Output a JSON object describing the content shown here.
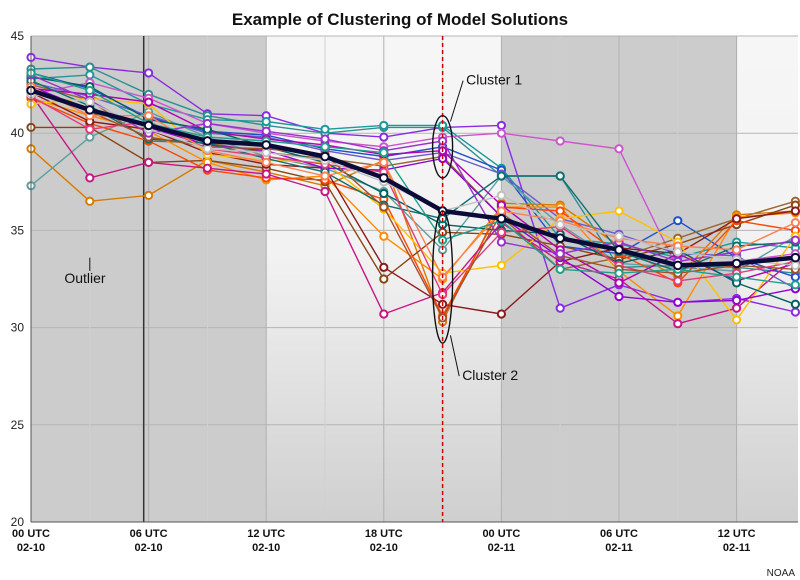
{
  "chart_data": {
    "type": "line",
    "title": "Example of Clustering of Model Solutions",
    "credit": "NOAA",
    "ylim": [
      20,
      45
    ],
    "yticks": [
      20,
      25,
      30,
      35,
      40,
      45
    ],
    "xlim": [
      0,
      33
    ],
    "xticks": [
      {
        "x": 0,
        "line1": "00 UTC",
        "line2": "02-10"
      },
      {
        "x": 6,
        "line1": "06 UTC",
        "line2": "02-10"
      },
      {
        "x": 12,
        "line1": "12 UTC",
        "line2": "02-10"
      },
      {
        "x": 18,
        "line1": "18 UTC",
        "line2": "02-10"
      },
      {
        "x": 24,
        "line1": "00 UTC",
        "line2": "02-11"
      },
      {
        "x": 30,
        "line1": "06 UTC",
        "line2": "02-11"
      },
      {
        "x": 36,
        "line1": "12 UTC",
        "line2": "02-11"
      }
    ],
    "night_bands": [
      [
        0,
        12
      ],
      [
        24,
        36
      ]
    ],
    "marked_time": 21,
    "black_vline": 5.75,
    "x": [
      0,
      3,
      6,
      9,
      12,
      15,
      18,
      21,
      24,
      27,
      30,
      33,
      36,
      39
    ],
    "mean": {
      "color": "#0b0b3a",
      "values": [
        42.2,
        41.2,
        40.4,
        39.6,
        39.4,
        38.8,
        37.7,
        36.0,
        35.6,
        34.6,
        34.0,
        33.2,
        33.3,
        33.6
      ]
    },
    "series": [
      {
        "color": "#8a2be2",
        "values": [
          43.9,
          43.4,
          43.1,
          41.0,
          40.9,
          40.0,
          39.8,
          40.3,
          40.4,
          31.0,
          32.2,
          31.3,
          31.5,
          30.8
        ]
      },
      {
        "color": "#2f8f8f",
        "values": [
          43.3,
          43.4,
          42.0,
          40.9,
          40.4,
          40.0,
          40.3,
          40.3,
          37.8,
          37.8,
          33.1,
          33.2,
          33.1,
          32.8
        ]
      },
      {
        "color": "#1a9a9a",
        "values": [
          42.8,
          43.0,
          41.5,
          40.7,
          40.6,
          40.2,
          40.4,
          40.4,
          38.2,
          34.6,
          34.3,
          33.6,
          34.4,
          34.1
        ]
      },
      {
        "color": "#cc55cc",
        "values": [
          42.0,
          42.6,
          41.8,
          40.5,
          40.0,
          39.6,
          39.3,
          39.8,
          40.0,
          39.6,
          39.2,
          33.0,
          33.4,
          33.8
        ]
      },
      {
        "color": "#1e50c8",
        "values": [
          43.1,
          42.3,
          40.8,
          40.1,
          39.9,
          39.2,
          38.8,
          39.3,
          38.1,
          34.2,
          33.8,
          35.5,
          33.6,
          32.6
        ]
      },
      {
        "color": "#6a5acd",
        "values": [
          42.6,
          41.9,
          40.9,
          40.0,
          39.8,
          39.1,
          38.6,
          39.0,
          37.9,
          35.6,
          34.8,
          33.8,
          33.7,
          32.0
        ]
      },
      {
        "color": "#996633",
        "values": [
          42.5,
          41.7,
          39.6,
          39.5,
          39.0,
          38.7,
          38.3,
          38.8,
          35.7,
          33.0,
          33.6,
          34.6,
          35.6,
          36.5
        ]
      },
      {
        "color": "#d97a00",
        "values": [
          39.2,
          36.5,
          36.8,
          38.6,
          38.0,
          37.3,
          38.6,
          30.3,
          36.4,
          36.3,
          34.2,
          32.6,
          35.8,
          36.0
        ]
      },
      {
        "color": "#5f9ea0",
        "values": [
          37.3,
          39.8,
          41.1,
          39.8,
          38.8,
          38.2,
          37.0,
          34.0,
          37.8,
          35.3,
          33.3,
          33.1,
          32.9,
          34.7
        ]
      },
      {
        "color": "#8b4513",
        "values": [
          40.3,
          40.3,
          38.5,
          38.6,
          38.2,
          37.5,
          32.5,
          34.9,
          34.8,
          34.2,
          33.5,
          34.3,
          35.3,
          36.3
        ]
      },
      {
        "color": "#ff8c00",
        "values": [
          41.8,
          40.9,
          40.1,
          38.5,
          37.6,
          37.8,
          34.7,
          32.5,
          36.2,
          36.2,
          32.9,
          30.6,
          35.7,
          35.9
        ]
      },
      {
        "color": "#ff4500",
        "values": [
          41.8,
          40.5,
          39.6,
          38.1,
          37.7,
          37.6,
          36.6,
          30.6,
          36.2,
          36.0,
          33.8,
          32.3,
          35.5,
          35.0
        ]
      },
      {
        "color": "#8b1a1a",
        "values": [
          42.1,
          40.6,
          40.2,
          39.0,
          38.4,
          38.2,
          33.1,
          31.2,
          30.7,
          33.4,
          34.1,
          33.8,
          35.6,
          36.0
        ]
      },
      {
        "color": "#c71585",
        "values": [
          42.0,
          37.7,
          38.5,
          38.2,
          37.9,
          37.0,
          30.7,
          31.8,
          35.4,
          33.4,
          32.5,
          30.2,
          31.0,
          33.6
        ]
      },
      {
        "color": "#ffc000",
        "values": [
          41.5,
          41.8,
          41.5,
          38.9,
          38.6,
          38.5,
          36.1,
          32.8,
          33.2,
          35.6,
          36.0,
          34.4,
          30.4,
          34.7
        ]
      },
      {
        "color": "#9400d3",
        "values": [
          42.4,
          41.2,
          40.3,
          39.4,
          39.1,
          38.2,
          38.1,
          38.7,
          35.7,
          33.6,
          31.6,
          31.3,
          31.4,
          32.0
        ]
      },
      {
        "color": "#b000b0",
        "values": [
          42.3,
          42.0,
          41.6,
          40.1,
          39.7,
          39.4,
          38.9,
          39.1,
          36.3,
          34.0,
          32.3,
          33.8,
          32.4,
          33.3
        ]
      },
      {
        "color": "#006060",
        "values": [
          42.9,
          42.4,
          40.7,
          40.2,
          39.3,
          38.5,
          36.9,
          35.3,
          35.0,
          34.8,
          33.3,
          34.0,
          32.3,
          31.2
        ]
      },
      {
        "color": "#0f6e6e",
        "values": [
          42.7,
          41.4,
          39.7,
          39.5,
          38.7,
          38.0,
          36.3,
          35.6,
          37.8,
          37.8,
          33.9,
          32.9,
          34.2,
          34.4
        ]
      },
      {
        "color": "#e63b7a",
        "values": [
          41.9,
          40.2,
          40.6,
          39.2,
          38.8,
          38.4,
          38.0,
          31.7,
          34.9,
          35.2,
          33.2,
          32.4,
          32.8,
          33.4
        ]
      },
      {
        "color": "#a0522d",
        "values": [
          42.2,
          41.1,
          39.8,
          39.3,
          39.2,
          38.9,
          36.2,
          30.5,
          35.9,
          33.7,
          33.0,
          32.8,
          33.2,
          33.0
        ]
      },
      {
        "color": "#9932cc",
        "values": [
          43.0,
          41.7,
          40.0,
          40.5,
          40.1,
          39.7,
          39.1,
          39.6,
          34.4,
          33.8,
          34.4,
          33.4,
          33.9,
          34.5
        ]
      },
      {
        "color": "#ff7f50",
        "values": [
          42.4,
          40.9,
          40.9,
          39.1,
          38.5,
          37.8,
          38.5,
          32.6,
          36.0,
          35.5,
          34.6,
          34.2,
          34.0,
          35.4
        ]
      },
      {
        "color": "#20a08a",
        "values": [
          43.1,
          42.2,
          40.5,
          39.8,
          39.6,
          39.3,
          39.0,
          34.5,
          35.5,
          33.0,
          32.8,
          33.0,
          32.6,
          32.2
        ]
      },
      {
        "color": "#c0c0c0",
        "values": [
          42.0,
          41.6,
          40.2,
          39.2,
          39.0,
          38.6,
          37.5,
          36.0,
          36.8,
          35.3,
          34.7,
          33.9,
          33.5,
          33.2
        ]
      }
    ],
    "annotations": [
      {
        "label": "Cluster 1",
        "cx": 21,
        "cy": 39.3,
        "ry_units": 1.6,
        "label_x": 22.2,
        "label_y": 42.5,
        "leader_to_x": 21.4,
        "leader_to_y": 40.6
      },
      {
        "label": "Cluster 2",
        "cx": 21,
        "cy": 32.6,
        "ry_units": 3.4,
        "label_x": 22.0,
        "label_y": 27.3,
        "leader_to_x": 21.4,
        "leader_to_y": 29.6
      },
      {
        "label": "Outlier",
        "cx": 3,
        "cy": 36.5,
        "label_x": 1.7,
        "label_y": 32.3,
        "leader_to_x": 3,
        "leader_to_y": 33.6
      }
    ]
  }
}
